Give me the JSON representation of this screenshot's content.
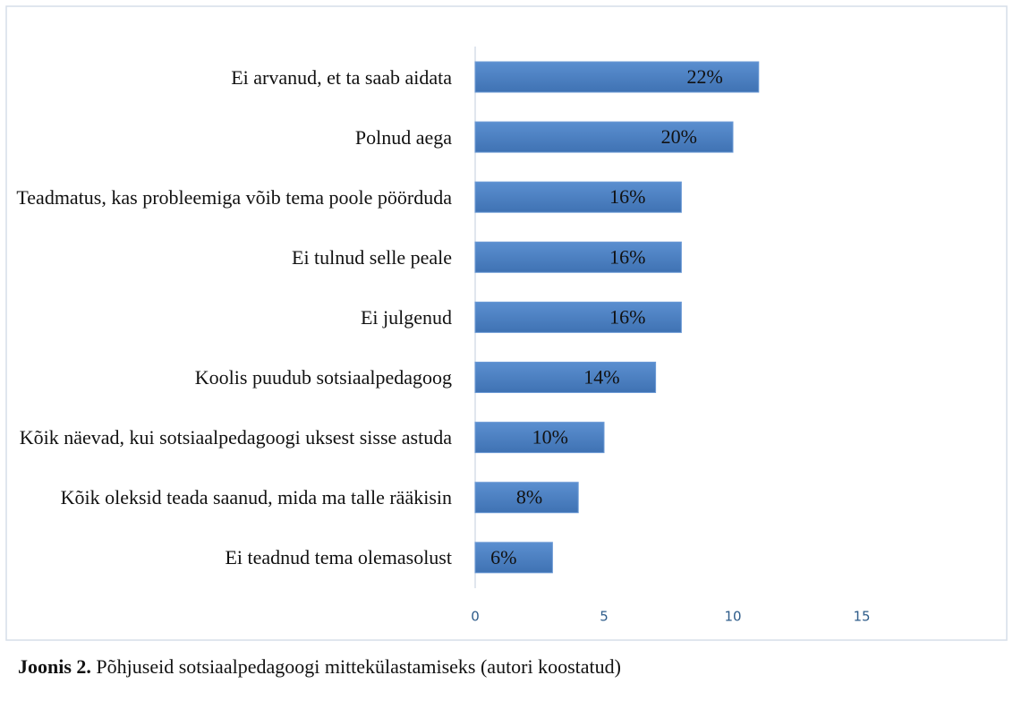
{
  "chart_data": {
    "type": "bar",
    "orientation": "horizontal",
    "categories": [
      "Ei arvanud, et ta saab aidata",
      "Polnud aega",
      "Teadmatus, kas probleemiga võib tema poole pöörduda",
      "Ei tulnud selle peale",
      "Ei julgenud",
      "Koolis puudub sotsiaalpedagoog",
      "Kõik näevad, kui sotsiaalpedagoogi uksest sisse astuda",
      "Kõik oleksid teada saanud, mida ma talle rääkisin",
      "Ei teadnud tema olemasolust"
    ],
    "values": [
      11,
      10,
      8,
      8,
      8,
      7,
      5,
      4,
      3
    ],
    "value_labels": [
      "22%",
      "20%",
      "16%",
      "16%",
      "16%",
      "14%",
      "10%",
      "8%",
      "6%"
    ],
    "color": "#4a7ebb",
    "xlim": [
      0,
      15
    ],
    "xticks": [
      0,
      5,
      10,
      15
    ],
    "caption_label": "Joonis 2.",
    "caption": "Põhjuseid sotsiaalpedagoogi mittekülastamiseks (autori koostatud)"
  }
}
